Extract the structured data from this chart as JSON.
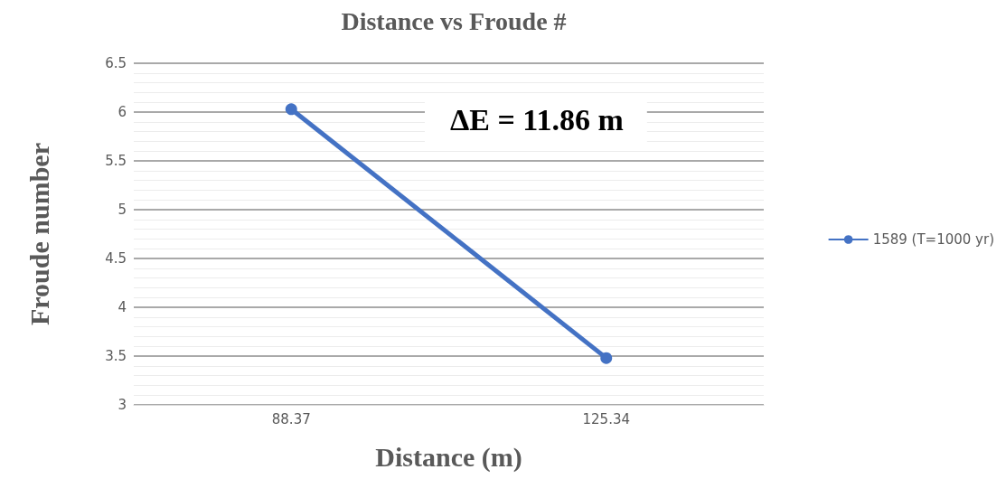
{
  "chart_data": {
    "type": "line",
    "title": "Distance vs Froude #",
    "xlabel": "Distance (m)",
    "ylabel": "Froude number",
    "categories": [
      "88.37",
      "125.34"
    ],
    "series": [
      {
        "name": "1589 (T=1000 yr)",
        "color": "#4472c4",
        "values": [
          6.03,
          3.48
        ]
      }
    ],
    "ylim": [
      3,
      6.5
    ],
    "yticks": [
      3,
      3.5,
      4,
      4.5,
      5,
      5.5,
      6,
      6.5
    ],
    "annotations": [
      "ΔE = 11.86 m"
    ],
    "grid": "y",
    "legend": "right",
    "marker": "circle",
    "line_style": "solid"
  }
}
